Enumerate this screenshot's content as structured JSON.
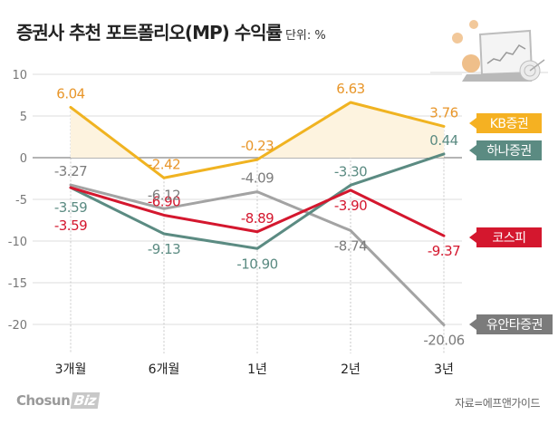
{
  "header": {
    "title": "증권사 추천 포트폴리오(MP) 수익률",
    "unit": "단위: %"
  },
  "footer": {
    "credit_main": "Chosun",
    "credit_badge": "Biz",
    "source": "자료=에프앤가이드"
  },
  "chart_data": {
    "type": "line",
    "title": "증권사 추천 포트폴리오(MP) 수익률",
    "unit": "%",
    "xlabel": "",
    "ylabel": "",
    "categories": [
      "3개월",
      "6개월",
      "1년",
      "2년",
      "3년"
    ],
    "ylim": [
      -23,
      12
    ],
    "yticks": [
      10,
      5,
      0,
      -5,
      -10,
      -15,
      -20
    ],
    "grid": true,
    "legend": "right-end-labels",
    "series": [
      {
        "name": "KB증권",
        "color": "#f0b321",
        "label_color": "#e8962a",
        "values": [
          6.04,
          -2.42,
          -0.23,
          6.63,
          3.76
        ],
        "labels": [
          "6.04",
          "-2.42",
          "-0.23",
          "6.63",
          "3.76"
        ],
        "label_pos": [
          "above",
          "above",
          "above",
          "above",
          "above"
        ],
        "fill_positive": true
      },
      {
        "name": "하나증권",
        "color": "#5b8b82",
        "label_color": "#5b8b82",
        "values": [
          -3.59,
          -9.13,
          -10.9,
          -3.3,
          0.44
        ],
        "labels": [
          "-3.59",
          "-9.13",
          "-10.90",
          "-3.30",
          "0.44"
        ],
        "label_pos": [
          "below1",
          "below",
          "below",
          "above",
          "above"
        ]
      },
      {
        "name": "코스피",
        "color": "#d4172e",
        "label_color": "#d4172e",
        "values": [
          -3.59,
          -6.9,
          -8.89,
          -3.9,
          -9.37
        ],
        "labels": [
          "-3.59",
          "-6.90",
          "-8.89",
          "-3.90",
          "-9.37"
        ],
        "label_pos": [
          "below2",
          "above",
          "above",
          "below",
          "below"
        ]
      },
      {
        "name": "유안타증권",
        "color": "#a3a3a3",
        "label_color": "#7c7c7c",
        "values": [
          -3.27,
          -6.12,
          -4.09,
          -8.74,
          -20.06
        ],
        "labels": [
          "-3.27",
          "-6.12",
          "-4.09",
          "-8.74",
          "-20.06"
        ],
        "label_pos": [
          "above",
          "above",
          "above",
          "below",
          "below"
        ]
      }
    ],
    "legend_tags": [
      {
        "name": "KB증권",
        "bg": "#f5b122"
      },
      {
        "name": "하나증권",
        "bg": "#5b8b82"
      },
      {
        "name": "코스피",
        "bg": "#d4172e"
      },
      {
        "name": "유안타증권",
        "bg": "#7b7b7b"
      }
    ]
  }
}
